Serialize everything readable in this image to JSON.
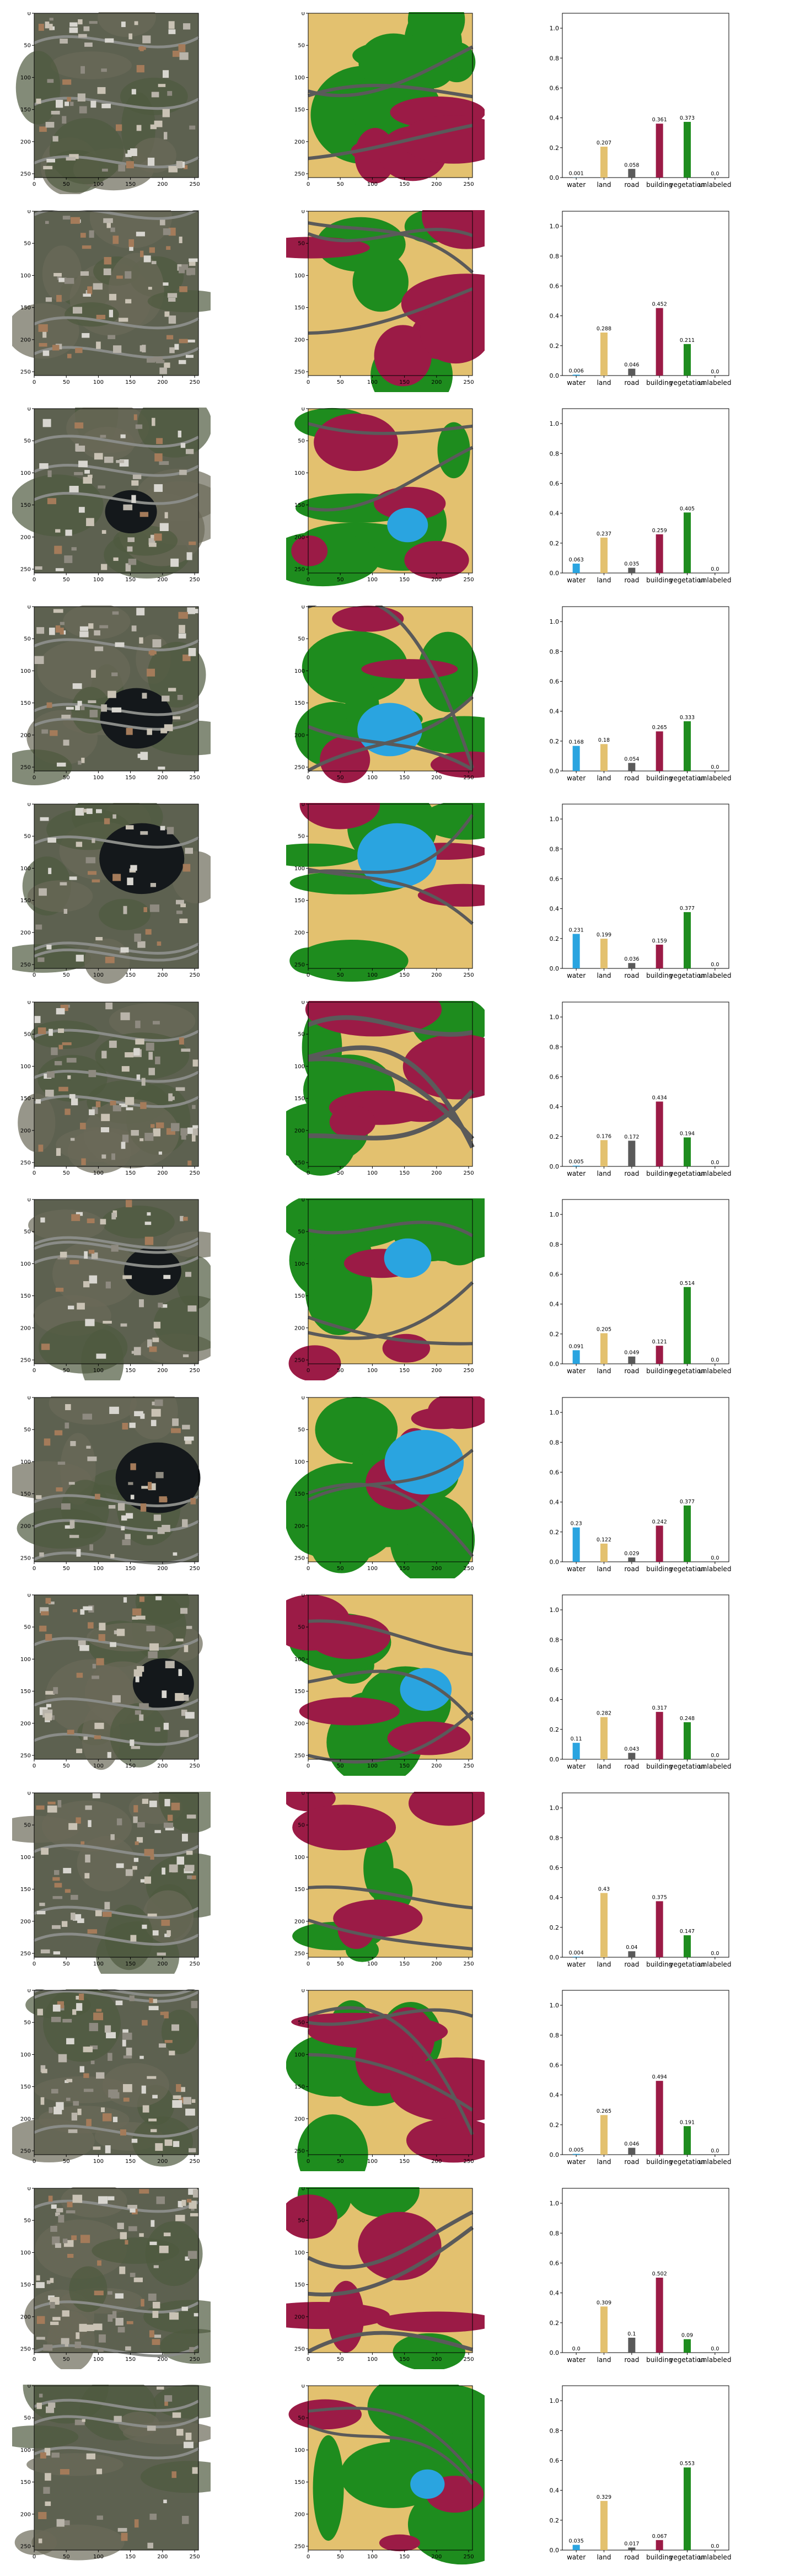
{
  "classes": [
    {
      "name": "water",
      "color": "#2aa4e0"
    },
    {
      "name": "land",
      "color": "#e3c16f"
    },
    {
      "name": "road",
      "color": "#5a5a5a"
    },
    {
      "name": "building",
      "color": "#9b1b46"
    },
    {
      "name": "vegetation",
      "color": "#1e8c1e"
    },
    {
      "name": "unlabeled",
      "color": "#9e9e9e"
    }
  ],
  "image_axis": {
    "ticks": [
      0,
      50,
      100,
      150,
      200,
      250
    ],
    "tick_labels": [
      "0",
      "50",
      "100",
      "150",
      "200",
      "250"
    ],
    "range": [
      0,
      256
    ]
  },
  "bar_axis": {
    "ylim": [
      0,
      1.1
    ],
    "ticks": [
      0.0,
      0.2,
      0.4,
      0.6,
      0.8,
      1.0
    ],
    "tick_labels": [
      "0.0",
      "0.2",
      "0.4",
      "0.6",
      "0.8",
      "1.0"
    ]
  },
  "chart_data": [
    {
      "type": "bar",
      "categories": [
        "water",
        "land",
        "road",
        "building",
        "vegetation",
        "unlabeled"
      ],
      "values": [
        0.001,
        0.207,
        0.058,
        0.361,
        0.373,
        0.0
      ],
      "value_labels": [
        "0.001",
        "0.207",
        "0.058",
        "0.361",
        "0.373",
        "0.0"
      ],
      "ylim": [
        0,
        1.1
      ]
    },
    {
      "type": "bar",
      "categories": [
        "water",
        "land",
        "road",
        "building",
        "vegetation",
        "unlabeled"
      ],
      "values": [
        0.006,
        0.288,
        0.046,
        0.452,
        0.211,
        0.0
      ],
      "value_labels": [
        "0.006",
        "0.288",
        "0.046",
        "0.452",
        "0.211",
        "0.0"
      ],
      "ylim": [
        0,
        1.1
      ]
    },
    {
      "type": "bar",
      "categories": [
        "water",
        "land",
        "road",
        "building",
        "vegetation",
        "unlabeled"
      ],
      "values": [
        0.063,
        0.237,
        0.035,
        0.259,
        0.405,
        0.0
      ],
      "value_labels": [
        "0.063",
        "0.237",
        "0.035",
        "0.259",
        "0.405",
        "0.0"
      ],
      "ylim": [
        0,
        1.1
      ]
    },
    {
      "type": "bar",
      "categories": [
        "water",
        "land",
        "road",
        "building",
        "vegetation",
        "unlabeled"
      ],
      "values": [
        0.168,
        0.18,
        0.054,
        0.265,
        0.333,
        0.0
      ],
      "value_labels": [
        "0.168",
        "0.18",
        "0.054",
        "0.265",
        "0.333",
        "0.0"
      ],
      "ylim": [
        0,
        1.1
      ]
    },
    {
      "type": "bar",
      "categories": [
        "water",
        "land",
        "road",
        "building",
        "vegetation",
        "unlabeled"
      ],
      "values": [
        0.231,
        0.199,
        0.036,
        0.159,
        0.377,
        0.0
      ],
      "value_labels": [
        "0.231",
        "0.199",
        "0.036",
        "0.159",
        "0.377",
        "0.0"
      ],
      "ylim": [
        0,
        1.1
      ]
    },
    {
      "type": "bar",
      "categories": [
        "water",
        "land",
        "road",
        "building",
        "vegetation",
        "unlabeled"
      ],
      "values": [
        0.005,
        0.176,
        0.172,
        0.434,
        0.194,
        0.0
      ],
      "value_labels": [
        "0.005",
        "0.176",
        "0.172",
        "0.434",
        "0.194",
        "0.0"
      ],
      "ylim": [
        0,
        1.1
      ]
    },
    {
      "type": "bar",
      "categories": [
        "water",
        "land",
        "road",
        "building",
        "vegetation",
        "unlabeled"
      ],
      "values": [
        0.091,
        0.205,
        0.049,
        0.121,
        0.514,
        0.0
      ],
      "value_labels": [
        "0.091",
        "0.205",
        "0.049",
        "0.121",
        "0.514",
        "0.0"
      ],
      "ylim": [
        0,
        1.1
      ]
    },
    {
      "type": "bar",
      "categories": [
        "water",
        "land",
        "road",
        "building",
        "vegetation",
        "unlabeled"
      ],
      "values": [
        0.23,
        0.122,
        0.029,
        0.242,
        0.377,
        0.0
      ],
      "value_labels": [
        "0.23",
        "0.122",
        "0.029",
        "0.242",
        "0.377",
        "0.0"
      ],
      "ylim": [
        0,
        1.1
      ]
    },
    {
      "type": "bar",
      "categories": [
        "water",
        "land",
        "road",
        "building",
        "vegetation",
        "unlabeled"
      ],
      "values": [
        0.11,
        0.282,
        0.043,
        0.317,
        0.248,
        0.0
      ],
      "value_labels": [
        "0.11",
        "0.282",
        "0.043",
        "0.317",
        "0.248",
        "0.0"
      ],
      "ylim": [
        0,
        1.1
      ]
    },
    {
      "type": "bar",
      "categories": [
        "water",
        "land",
        "road",
        "building",
        "vegetation",
        "unlabeled"
      ],
      "values": [
        0.004,
        0.43,
        0.04,
        0.375,
        0.147,
        0.0
      ],
      "value_labels": [
        "0.004",
        "0.43",
        "0.04",
        "0.375",
        "0.147",
        "0.0"
      ],
      "ylim": [
        0,
        1.1
      ]
    },
    {
      "type": "bar",
      "categories": [
        "water",
        "land",
        "road",
        "building",
        "vegetation",
        "unlabeled"
      ],
      "values": [
        0.005,
        0.265,
        0.046,
        0.494,
        0.191,
        0.0
      ],
      "value_labels": [
        "0.005",
        "0.265",
        "0.046",
        "0.494",
        "0.191",
        "0.0"
      ],
      "ylim": [
        0,
        1.1
      ]
    },
    {
      "type": "bar",
      "categories": [
        "water",
        "land",
        "road",
        "building",
        "vegetation",
        "unlabeled"
      ],
      "values": [
        0.0,
        0.309,
        0.1,
        0.502,
        0.09,
        0.0
      ],
      "value_labels": [
        "0.0",
        "0.309",
        "0.1",
        "0.502",
        "0.09",
        "0.0"
      ],
      "ylim": [
        0,
        1.1
      ]
    },
    {
      "type": "bar",
      "categories": [
        "water",
        "land",
        "road",
        "building",
        "vegetation",
        "unlabeled"
      ],
      "values": [
        0.035,
        0.329,
        0.017,
        0.067,
        0.553,
        0.0
      ],
      "value_labels": [
        "0.035",
        "0.329",
        "0.017",
        "0.067",
        "0.553",
        "0.0"
      ],
      "ylim": [
        0,
        1.1
      ]
    }
  ]
}
